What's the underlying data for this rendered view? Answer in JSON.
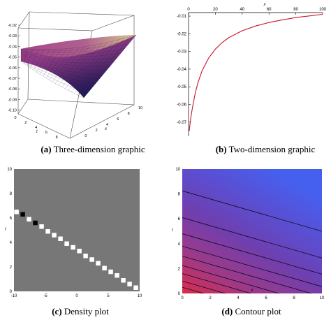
{
  "captions": {
    "a": {
      "tag": "(a)",
      "text": "Three-dimension graphic"
    },
    "b": {
      "tag": "(b)",
      "text": "Two-dimension graphic"
    },
    "c": {
      "tag": "(c)",
      "text": "Density plot"
    },
    "d": {
      "tag": "(d)",
      "text": "Contour plot"
    }
  },
  "chart_data": [
    {
      "type": "surface3d",
      "z_ticks": [
        "-0.02",
        "-0.03",
        "-0.04",
        "-0.05",
        "-0.06",
        "-0.07",
        "-0.08",
        "-0.09",
        "-0.10"
      ],
      "t_ticks": [
        "0",
        "2",
        "4",
        "6",
        "8",
        "10"
      ],
      "t_label": "t",
      "x_ticks": [
        "-2",
        "0",
        "2",
        "4",
        "6",
        "8",
        "10"
      ],
      "x_label": "x",
      "colors": {
        "high": "#e2e08e",
        "mid": "#9a3f8c",
        "low": "#1d1a55"
      }
    },
    {
      "type": "line",
      "xlim": [
        0,
        100
      ],
      "ylim": [
        -0.078,
        -0.008
      ],
      "x_ticks": [
        0,
        20,
        40,
        60,
        80,
        100
      ],
      "x_tick_labels": [
        "0",
        "20",
        "40",
        "60",
        "80",
        "100"
      ],
      "y_ticks": [
        -0.01,
        -0.02,
        -0.03,
        -0.04,
        -0.05,
        -0.06,
        -0.07
      ],
      "y_tick_labels": [
        "-0.01",
        "-0.02",
        "-0.03",
        "-0.04",
        "-0.05",
        "-0.06",
        "-0.07"
      ],
      "xlabel": "x",
      "x_axis_position": "top",
      "series": [
        {
          "color": "#c8162c",
          "x": [
            0.5,
            1,
            2,
            3,
            5,
            7,
            10,
            15,
            20,
            25,
            30,
            40,
            50,
            60,
            70,
            80,
            90,
            100
          ],
          "y": [
            -0.075,
            -0.0717,
            -0.0661,
            -0.0613,
            -0.0536,
            -0.0477,
            -0.0411,
            -0.0337,
            -0.0287,
            -0.025,
            -0.0222,
            -0.0183,
            -0.0156,
            -0.0136,
            -0.0121,
            -0.0108,
            -0.0099,
            -0.009
          ]
        }
      ]
    },
    {
      "type": "heatmap",
      "xlim": [
        -10,
        10
      ],
      "ylim": [
        0,
        10
      ],
      "x_ticks": [
        -10,
        -5,
        0,
        5,
        10
      ],
      "x_tick_labels": [
        "-10",
        "-5",
        "0",
        "5",
        "10"
      ],
      "y_ticks": [
        0,
        2,
        4,
        6,
        8,
        10
      ],
      "y_tick_labels": [
        "0",
        "2",
        "4",
        "6",
        "8",
        "10"
      ],
      "ylabel": "t",
      "background": "#777777",
      "squares": [
        {
          "x": -9.6,
          "y": 6.5,
          "color": "#ffffff"
        },
        {
          "x": -8.6,
          "y": 6.3,
          "color": "#000000"
        },
        {
          "x": -7.6,
          "y": 5.9,
          "color": "#ffffff"
        },
        {
          "x": -6.6,
          "y": 5.6,
          "color": "#000000"
        },
        {
          "x": -5.6,
          "y": 5.3,
          "color": "#ffffff"
        },
        {
          "x": -4.6,
          "y": 4.9,
          "color": "#ffffff"
        },
        {
          "x": -3.6,
          "y": 4.6,
          "color": "#ffffff"
        },
        {
          "x": -2.6,
          "y": 4.3,
          "color": "#ffffff"
        },
        {
          "x": -1.6,
          "y": 3.9,
          "color": "#ffffff"
        },
        {
          "x": -0.6,
          "y": 3.6,
          "color": "#ffffff"
        },
        {
          "x": 0.4,
          "y": 3.3,
          "color": "#ffffff"
        },
        {
          "x": 1.4,
          "y": 2.9,
          "color": "#ffffff"
        },
        {
          "x": 2.4,
          "y": 2.6,
          "color": "#ffffff"
        },
        {
          "x": 3.4,
          "y": 2.3,
          "color": "#ffffff"
        },
        {
          "x": 4.4,
          "y": 1.9,
          "color": "#ffffff"
        },
        {
          "x": 5.4,
          "y": 1.6,
          "color": "#ffffff"
        },
        {
          "x": 6.4,
          "y": 1.3,
          "color": "#ffffff"
        },
        {
          "x": 7.4,
          "y": 0.9,
          "color": "#ffffff"
        },
        {
          "x": 8.4,
          "y": 0.6,
          "color": "#ffffff"
        },
        {
          "x": 9.4,
          "y": 0.3,
          "color": "#ffffff"
        }
      ]
    },
    {
      "type": "contour",
      "xlim": [
        0,
        10
      ],
      "ylim": [
        0,
        10
      ],
      "x_ticks": [
        0,
        2,
        4,
        6,
        8,
        10
      ],
      "x_tick_labels": [
        "0",
        "2",
        "4",
        "6",
        "8",
        "10"
      ],
      "y_ticks": [
        0,
        2,
        4,
        6,
        8,
        10
      ],
      "y_tick_labels": [
        "0",
        "2",
        "4",
        "6",
        "8",
        "10"
      ],
      "xlabel": "x",
      "ylabel": "t",
      "colors": {
        "high": "#4560ef",
        "mid": "#6f3fb0",
        "low": "#dc2c4c"
      },
      "contour_lines": [
        {
          "y_at_x0": 8.25,
          "y_at_x10": 5.0
        },
        {
          "y_at_x0": 6.1,
          "y_at_x10": 2.85
        },
        {
          "y_at_x0": 4.8,
          "y_at_x10": 1.55
        },
        {
          "y_at_x0": 3.8,
          "y_at_x10": 0.55
        },
        {
          "y_at_x0": 3.0,
          "y_at_x10": -0.25
        },
        {
          "y_at_x0": 2.25,
          "y_at_x10": -1.0
        },
        {
          "y_at_x0": 1.6,
          "y_at_x10": -1.65
        },
        {
          "y_at_x0": 1.0,
          "y_at_x10": -2.25
        },
        {
          "y_at_x0": 0.5,
          "y_at_x10": -2.75
        }
      ]
    }
  ]
}
